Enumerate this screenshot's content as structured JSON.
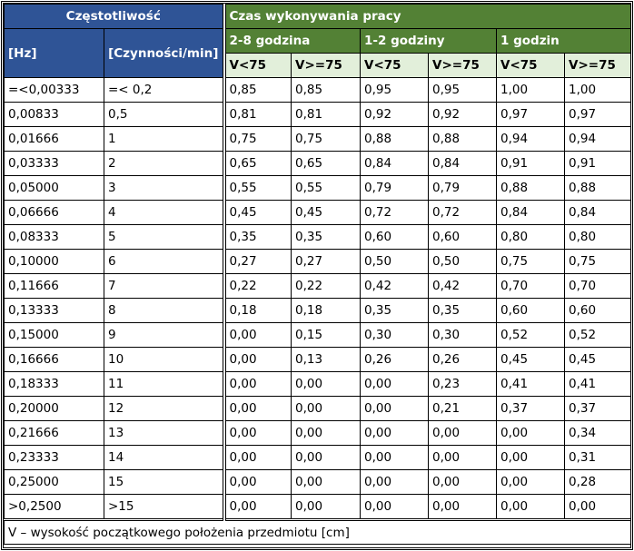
{
  "header": {
    "freq": "Częstotliwość",
    "time": "Czas wykonywania pracy",
    "hz": "[Hz]",
    "cpm": "[Czynności/min]",
    "groups": [
      "2-8 godzina",
      "1-2 godziny",
      "1 godzin"
    ],
    "sub": [
      "V<75",
      "V>=75",
      "V<75",
      "V>=75",
      "V<75",
      "V>=75"
    ]
  },
  "rows": [
    [
      "=<0,00333",
      "=< 0,2",
      "0,85",
      "0,85",
      "0,95",
      "0,95",
      "1,00",
      "1,00"
    ],
    [
      "0,00833",
      "0,5",
      "0,81",
      "0,81",
      "0,92",
      "0,92",
      "0,97",
      "0,97"
    ],
    [
      "0,01666",
      "1",
      "0,75",
      "0,75",
      "0,88",
      "0,88",
      "0,94",
      "0,94"
    ],
    [
      "0,03333",
      "2",
      "0,65",
      "0,65",
      "0,84",
      "0,84",
      "0,91",
      "0,91"
    ],
    [
      "0,05000",
      "3",
      "0,55",
      "0,55",
      "0,79",
      "0,79",
      "0,88",
      "0,88"
    ],
    [
      "0,06666",
      "4",
      "0,45",
      "0,45",
      "0,72",
      "0,72",
      "0,84",
      "0,84"
    ],
    [
      "0,08333",
      "5",
      "0,35",
      "0,35",
      "0,60",
      "0,60",
      "0,80",
      "0,80"
    ],
    [
      "0,10000",
      "6",
      "0,27",
      "0,27",
      "0,50",
      "0,50",
      "0,75",
      "0,75"
    ],
    [
      "0,11666",
      "7",
      "0,22",
      "0,22",
      "0,42",
      "0,42",
      "0,70",
      "0,70"
    ],
    [
      "0,13333",
      "8",
      "0,18",
      "0,18",
      "0,35",
      "0,35",
      "0,60",
      "0,60"
    ],
    [
      "0,15000",
      "9",
      "0,00",
      "0,15",
      "0,30",
      "0,30",
      "0,52",
      "0,52"
    ],
    [
      "0,16666",
      "10",
      "0,00",
      "0,13",
      "0,26",
      "0,26",
      "0,45",
      "0,45"
    ],
    [
      "0,18333",
      "11",
      "0,00",
      "0,00",
      "0,00",
      "0,23",
      "0,41",
      "0,41"
    ],
    [
      "0,20000",
      "12",
      "0,00",
      "0,00",
      "0,00",
      "0,21",
      "0,37",
      "0,37"
    ],
    [
      "0,21666",
      "13",
      "0,00",
      "0,00",
      "0,00",
      "0,00",
      "0,00",
      "0,34"
    ],
    [
      "0,23333",
      "14",
      "0,00",
      "0,00",
      "0,00",
      "0,00",
      "0,00",
      "0,31"
    ],
    [
      "0,25000",
      "15",
      "0,00",
      "0,00",
      "0,00",
      "0,00",
      "0,00",
      "0,28"
    ],
    [
      ">0,2500",
      ">15",
      "0,00",
      "0,00",
      "0,00",
      "0,00",
      "0,00",
      "0,00"
    ]
  ],
  "footer": "V – wysokość początkowego położenia przedmiotu [cm]"
}
